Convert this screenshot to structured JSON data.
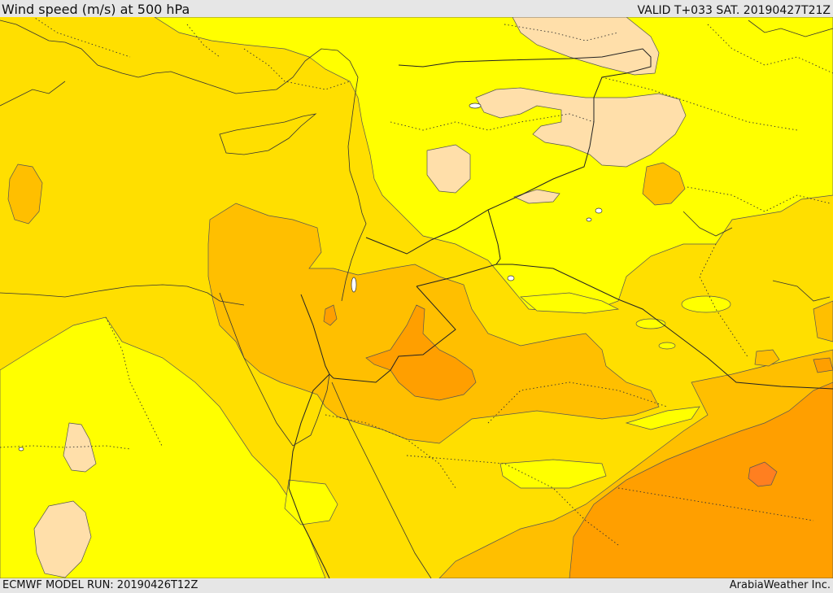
{
  "header": {
    "title": "Wind speed (m/s) at 500 hPa",
    "valid": "VALID T+033 SAT. 20190427T21Z"
  },
  "footer": {
    "model_run": "ECMWF MODEL RUN: 20190426T12Z",
    "credit": "ArabiaWeather Inc."
  },
  "palette": {
    "bg": "#ffdf00",
    "yellow": "#ffff00",
    "peach": "#ffdfaa",
    "light_orange": "#ffbf00",
    "mid_orange": "#ff9f00",
    "dark_orange": "#ff7f20"
  }
}
